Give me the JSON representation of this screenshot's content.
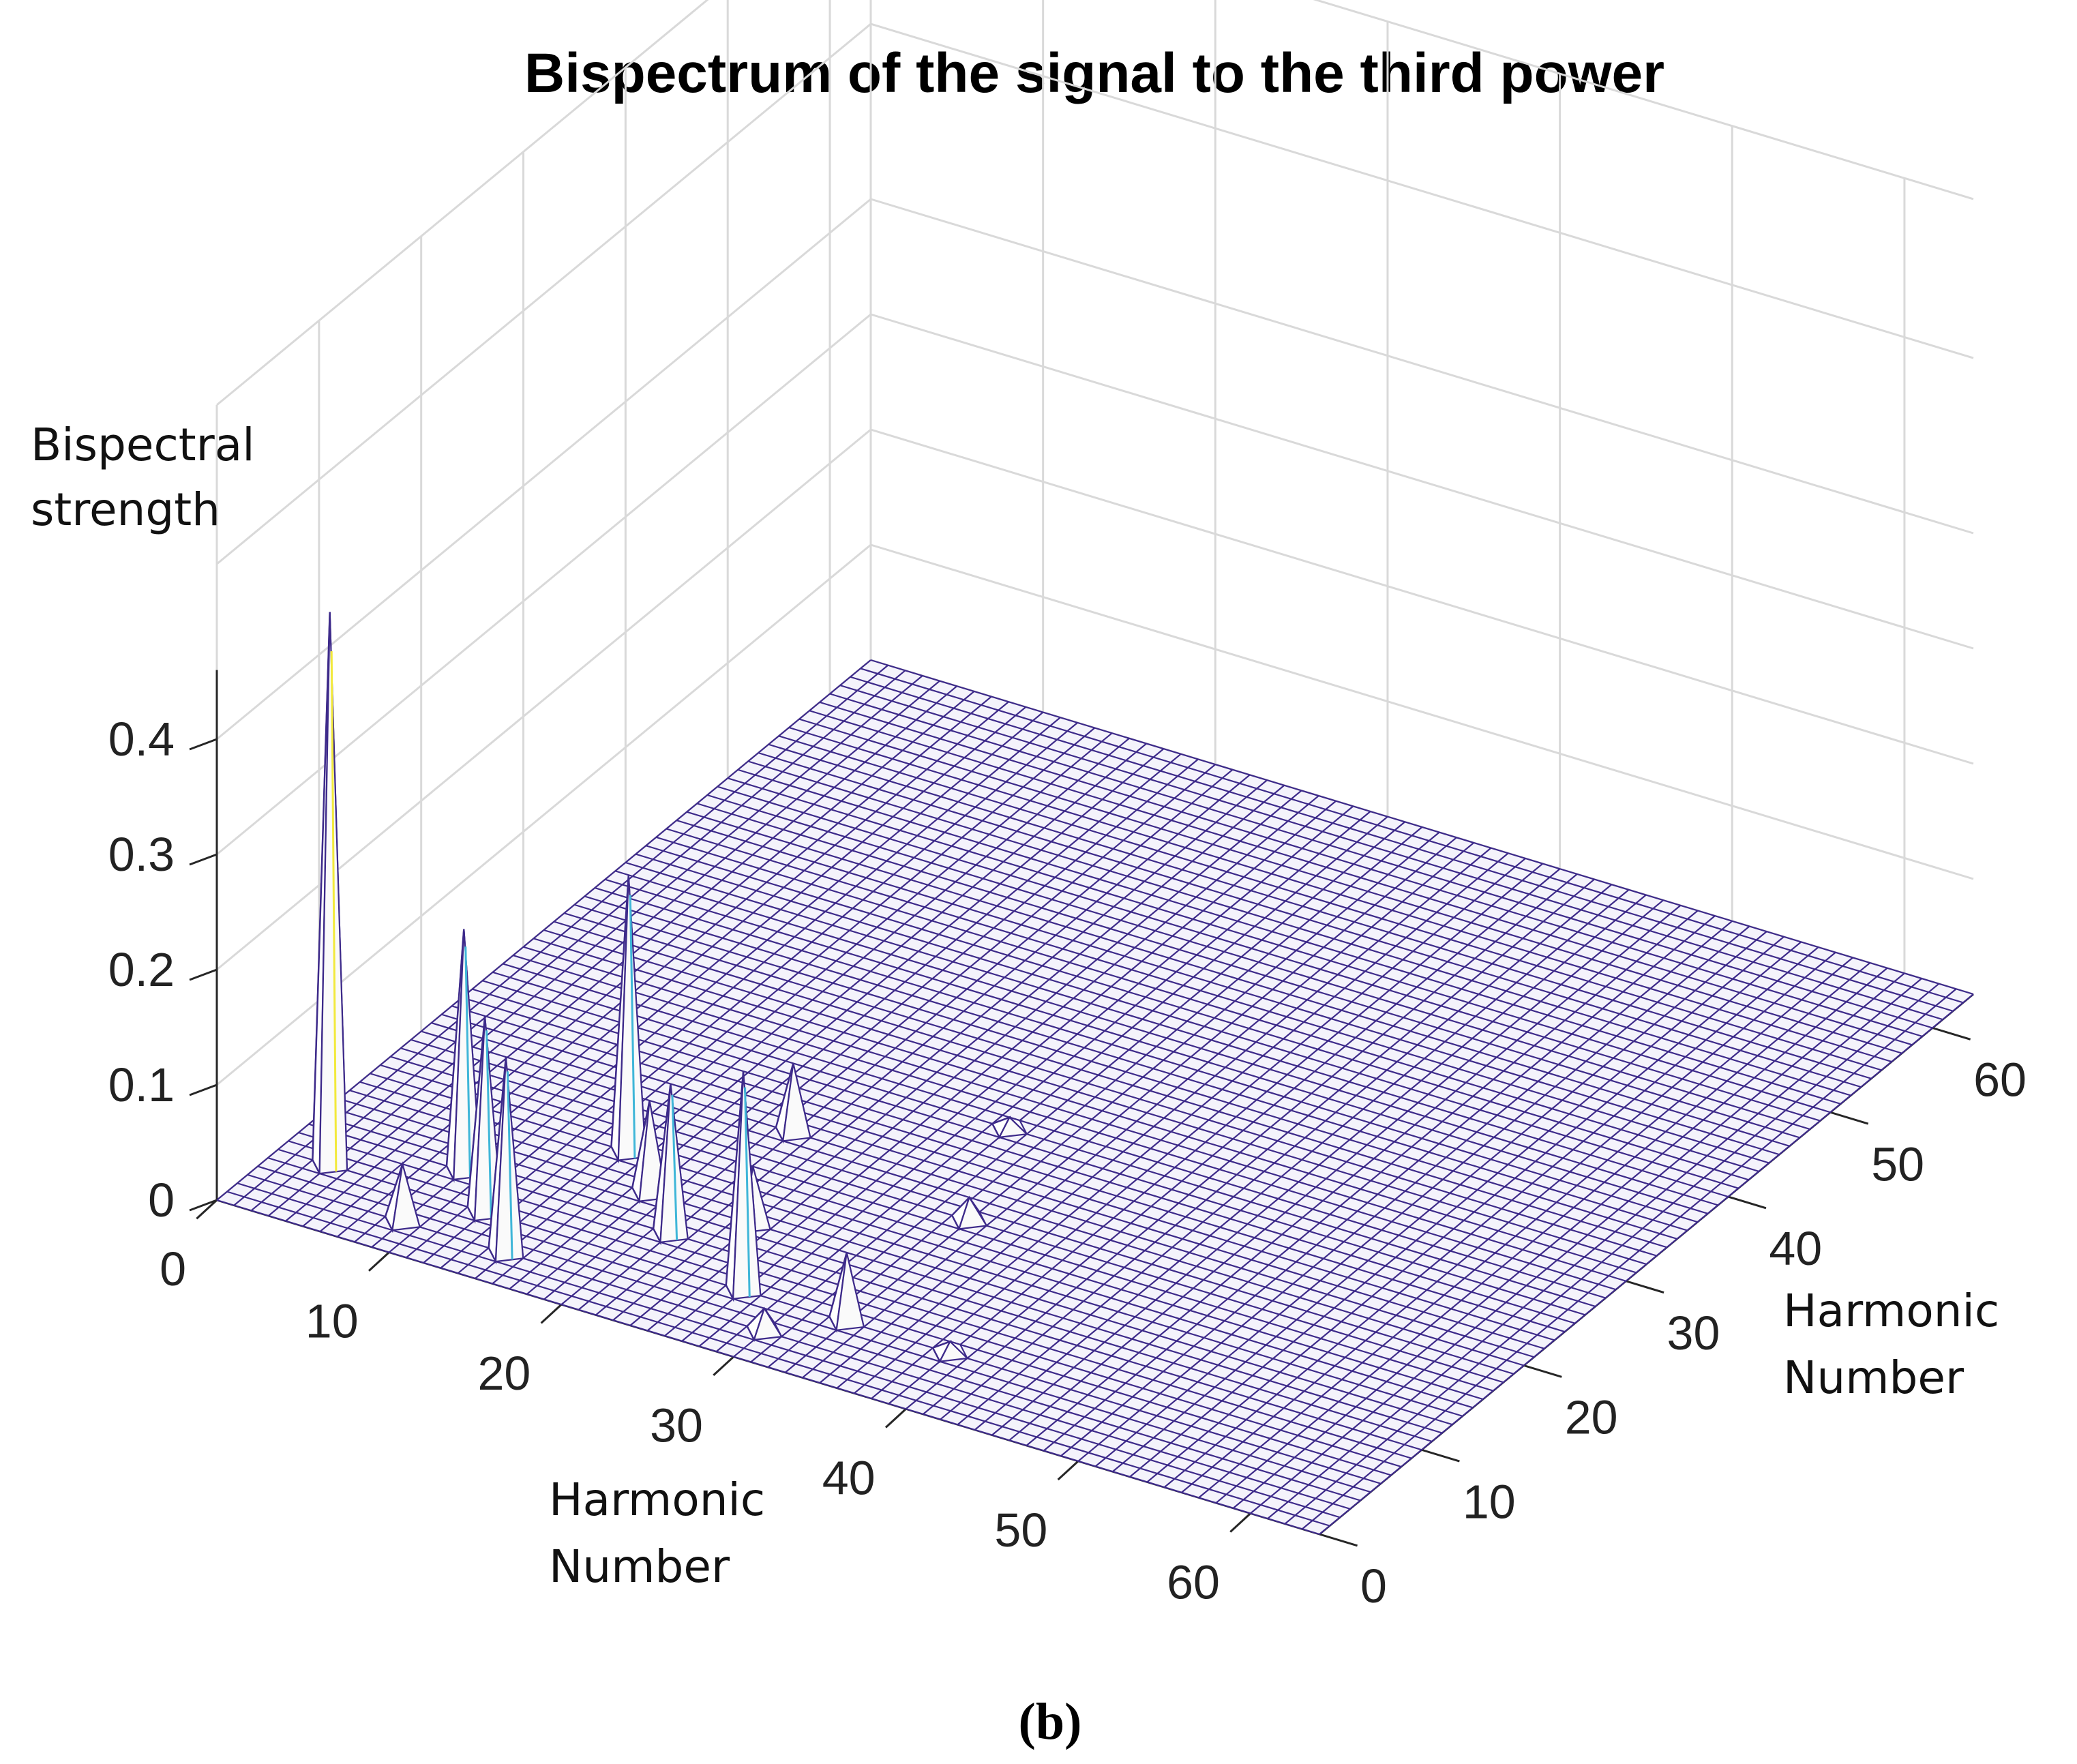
{
  "chart_data": {
    "type": "surface3d",
    "title": "Bispectrum of the signal to the third power",
    "zlabel": [
      "Bispectral",
      "strength"
    ],
    "xlabel": [
      "Harmonic",
      "Number"
    ],
    "ylabel": [
      "Harmonic",
      "Number"
    ],
    "panel_label": "(b)",
    "xlim": [
      0,
      64
    ],
    "ylim": [
      0,
      64
    ],
    "zlim": [
      0,
      0.46
    ],
    "x_ticks": [
      "0",
      "10",
      "20",
      "30",
      "40",
      "50",
      "60"
    ],
    "y_ticks": [
      "0",
      "10",
      "20",
      "30",
      "40",
      "50",
      "60"
    ],
    "z_ticks": [
      "0",
      "0.1",
      "0.2",
      "0.3",
      "0.4"
    ],
    "grid": true,
    "mesh_color": "#3d2a8a",
    "face_color": "#ffffff",
    "peaks": [
      {
        "x": 3,
        "y": 6,
        "z": 0.48
      },
      {
        "x": 9,
        "y": 3,
        "z": 0.05
      },
      {
        "x": 9,
        "y": 9,
        "z": 0.21
      },
      {
        "x": 12,
        "y": 6,
        "z": 0.17
      },
      {
        "x": 15,
        "y": 3,
        "z": 0.17
      },
      {
        "x": 15,
        "y": 15,
        "z": 0.24
      },
      {
        "x": 18,
        "y": 12,
        "z": 0.08
      },
      {
        "x": 21,
        "y": 9,
        "z": 0.13
      },
      {
        "x": 21,
        "y": 21,
        "z": 0.06
      },
      {
        "x": 24,
        "y": 12,
        "z": 0.05
      },
      {
        "x": 27,
        "y": 6,
        "z": 0.19
      },
      {
        "x": 30,
        "y": 3,
        "z": 0.02
      },
      {
        "x": 30,
        "y": 27,
        "z": 0.01
      },
      {
        "x": 33,
        "y": 6,
        "z": 0.06
      },
      {
        "x": 33,
        "y": 18,
        "z": 0.02
      },
      {
        "x": 39,
        "y": 6,
        "z": 0.01
      }
    ]
  }
}
